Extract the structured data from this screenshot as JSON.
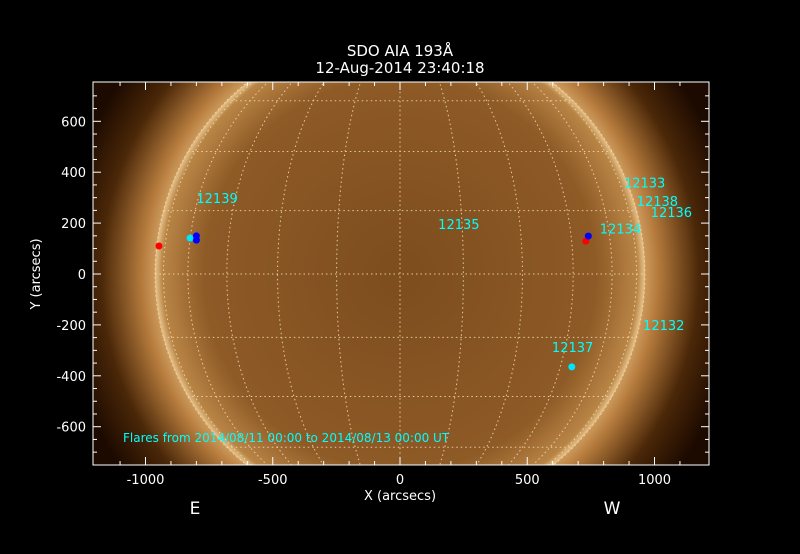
{
  "title": "SDO AIA 193Å",
  "subtitle": "12-Aug-2014 23:40:18",
  "xlabel": "X (arcsecs)",
  "ylabel": "Y (arcsecs)",
  "xlim": [
    -1200,
    1200
  ],
  "ylim": [
    -750,
    750
  ],
  "xticks": [
    "-1000",
    "-500",
    "0",
    "500",
    "1000"
  ],
  "yticks": [
    "-600",
    "-400",
    "-200",
    "0",
    "200",
    "400",
    "600"
  ],
  "east_label": "E",
  "west_label": "W",
  "flare_note": "Flares from 2014/08/11 00:00 to 2014/08/13 00:00 UT",
  "colors": {
    "label": "#00ffff",
    "red": "#ff0000",
    "blue": "#0000ff",
    "cyan": "#00e5ff",
    "grid": "#f5deb3"
  },
  "regions": [
    {
      "id": "12139",
      "x": -800,
      "y": 278
    },
    {
      "id": "12135",
      "x": 150,
      "y": 176
    },
    {
      "id": "12134",
      "x": 785,
      "y": 160
    },
    {
      "id": "12133",
      "x": 880,
      "y": 340
    },
    {
      "id": "12138",
      "x": 930,
      "y": 267
    },
    {
      "id": "12136",
      "x": 985,
      "y": 223
    },
    {
      "id": "12132",
      "x": 955,
      "y": -220
    },
    {
      "id": "12137",
      "x": 597,
      "y": -306
    }
  ],
  "flares": [
    {
      "x": -947,
      "y": 110,
      "color": "red"
    },
    {
      "x": -825,
      "y": 141,
      "color": "cyan"
    },
    {
      "x": -800,
      "y": 150,
      "color": "blue"
    },
    {
      "x": -800,
      "y": 133,
      "color": "blue"
    },
    {
      "x": 730,
      "y": 129,
      "color": "red"
    },
    {
      "x": 740,
      "y": 149,
      "color": "blue"
    },
    {
      "x": 675,
      "y": -365,
      "color": "cyan"
    }
  ]
}
